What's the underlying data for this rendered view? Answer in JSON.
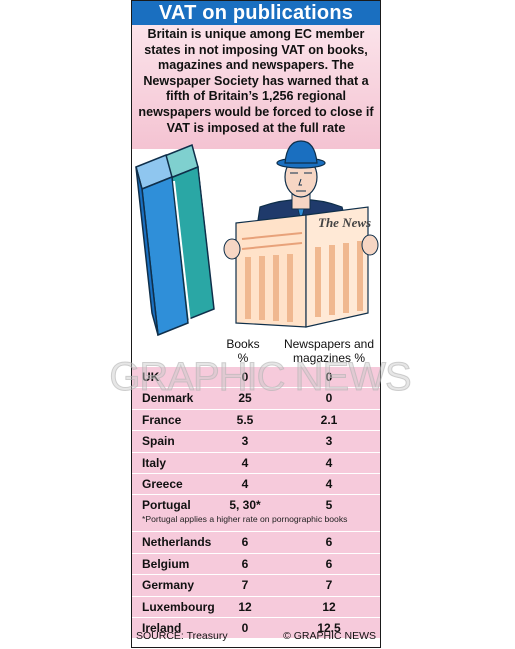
{
  "title": "VAT on publications",
  "intro": "Britain is unique among EC member states in not imposing VAT on books, magazines and newspapers. The Newspaper Society has warned that a fifth of Britain’s 1,256 regional newspapers would be forced to close if VAT is imposed at the full rate",
  "illustration": {
    "newspaper_masthead": "The News"
  },
  "columns": {
    "books": "Books %",
    "newspapers": "Newspapers and magazines %"
  },
  "rows": [
    {
      "country": "UK",
      "books": "0",
      "newspapers": "0"
    },
    {
      "country": "Denmark",
      "books": "25",
      "newspapers": "0"
    },
    {
      "country": "France",
      "books": "5.5",
      "newspapers": "2.1"
    },
    {
      "country": "Spain",
      "books": "3",
      "newspapers": "3"
    },
    {
      "country": "Italy",
      "books": "4",
      "newspapers": "4"
    },
    {
      "country": "Greece",
      "books": "4",
      "newspapers": "4"
    },
    {
      "country": "Portugal",
      "books": "5, 30*",
      "newspapers": "5",
      "note": "*Portugal applies a higher rate on pornographic books"
    },
    {
      "country": "Netherlands",
      "books": "6",
      "newspapers": "6"
    },
    {
      "country": "Belgium",
      "books": "6",
      "newspapers": "6"
    },
    {
      "country": "Germany",
      "books": "7",
      "newspapers": "7"
    },
    {
      "country": "Luxembourg",
      "books": "12",
      "newspapers": "12"
    },
    {
      "country": "Ireland",
      "books": "0",
      "newspapers": "12.5"
    }
  ],
  "source": "SOURCE: Treasury",
  "credit": "© GRAPHIC NEWS",
  "watermark": "GRAPHIC NEWS",
  "colors": {
    "title_bar": "#1a6fc0",
    "table_row": "#f6cadb",
    "intro_bg": "#f4c3d2"
  }
}
